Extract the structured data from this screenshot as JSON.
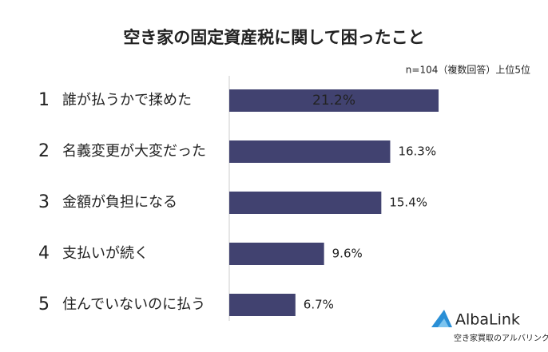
{
  "chart_data": {
    "type": "bar",
    "orientation": "horizontal",
    "title": "空き家の固定資産税に関して困ったこと",
    "subtitle": "n=104（複数回答）上位5位",
    "ranks": [
      1,
      2,
      3,
      4,
      5
    ],
    "categories": [
      "誰が払うかで揉めた",
      "名義変更が大変だった",
      "金額が負担になる",
      "支払いが続く",
      "住んでいないのに払う"
    ],
    "values": [
      21.2,
      16.3,
      15.4,
      9.6,
      6.7
    ],
    "value_labels": [
      "21.2%",
      "16.3%",
      "15.4%",
      "9.6%",
      "6.7%"
    ],
    "color": "#414270"
  },
  "logo": {
    "name": "AlbaLink",
    "tagline": "空き家買取のアルバリンク"
  }
}
